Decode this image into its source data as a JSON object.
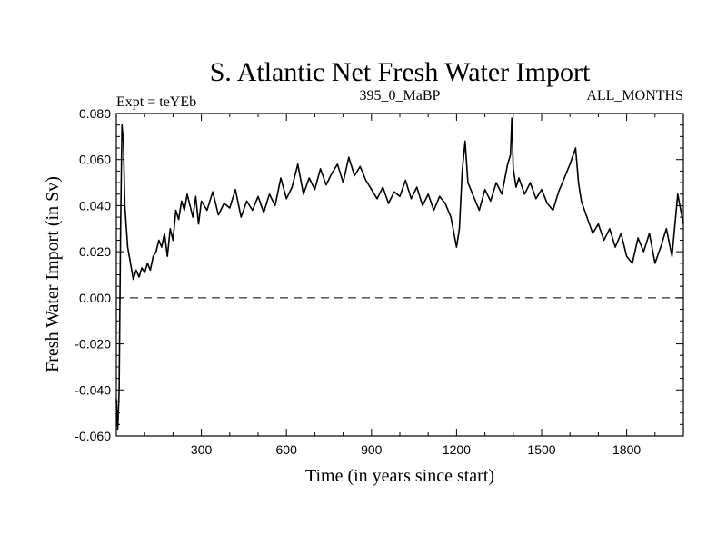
{
  "chart_data": {
    "type": "line",
    "title": "S. Atlantic Net Fresh Water Import",
    "subtitle_left": "Expt = teYEb",
    "subtitle_center": "395_0_MaBP",
    "subtitle_right": "ALL_MONTHS",
    "xlabel": "Time (in years since start)",
    "ylabel": "Fresh Water Import (in Sv)",
    "xlim": [
      0,
      2000
    ],
    "ylim": [
      -0.06,
      0.08
    ],
    "xticks": [
      300,
      600,
      900,
      1200,
      1500,
      1800
    ],
    "xtick_labels": [
      "300",
      "600",
      "900",
      "1200",
      "1500",
      "1800"
    ],
    "yticks": [
      -0.06,
      -0.04,
      -0.02,
      0.0,
      0.02,
      0.04,
      0.06,
      0.08
    ],
    "ytick_labels": [
      "-0.060",
      "-0.040",
      "-0.020",
      "0.000",
      "0.020",
      "0.040",
      "0.060",
      "0.080"
    ],
    "reference_line": {
      "y": 0.0,
      "style": "dashed"
    },
    "series": [
      {
        "name": "Net Fresh Water Import",
        "x": [
          0,
          5,
          10,
          15,
          20,
          25,
          30,
          40,
          50,
          60,
          70,
          80,
          90,
          100,
          110,
          120,
          130,
          140,
          150,
          160,
          170,
          180,
          190,
          200,
          210,
          220,
          230,
          240,
          250,
          260,
          270,
          280,
          290,
          300,
          320,
          340,
          360,
          380,
          400,
          420,
          440,
          460,
          480,
          500,
          520,
          540,
          560,
          580,
          600,
          620,
          640,
          660,
          680,
          700,
          720,
          740,
          760,
          780,
          800,
          820,
          840,
          860,
          880,
          900,
          920,
          940,
          960,
          980,
          1000,
          1020,
          1040,
          1060,
          1080,
          1100,
          1120,
          1140,
          1160,
          1180,
          1200,
          1210,
          1220,
          1230,
          1240,
          1260,
          1280,
          1300,
          1320,
          1340,
          1360,
          1380,
          1390,
          1395,
          1400,
          1410,
          1420,
          1440,
          1460,
          1480,
          1500,
          1520,
          1540,
          1560,
          1580,
          1600,
          1620,
          1630,
          1640,
          1660,
          1680,
          1700,
          1720,
          1740,
          1760,
          1780,
          1800,
          1820,
          1840,
          1860,
          1880,
          1900,
          1920,
          1940,
          1960,
          1980,
          2000
        ],
        "y": [
          -0.044,
          -0.057,
          -0.04,
          0.03,
          0.075,
          0.068,
          0.04,
          0.022,
          0.015,
          0.008,
          0.012,
          0.009,
          0.013,
          0.011,
          0.015,
          0.012,
          0.018,
          0.02,
          0.025,
          0.022,
          0.028,
          0.018,
          0.03,
          0.025,
          0.038,
          0.034,
          0.042,
          0.038,
          0.045,
          0.04,
          0.035,
          0.044,
          0.032,
          0.042,
          0.038,
          0.046,
          0.036,
          0.041,
          0.039,
          0.047,
          0.035,
          0.042,
          0.038,
          0.044,
          0.037,
          0.045,
          0.04,
          0.052,
          0.043,
          0.048,
          0.058,
          0.045,
          0.052,
          0.047,
          0.056,
          0.049,
          0.054,
          0.058,
          0.05,
          0.061,
          0.053,
          0.057,
          0.051,
          0.047,
          0.043,
          0.048,
          0.041,
          0.046,
          0.044,
          0.051,
          0.043,
          0.048,
          0.04,
          0.045,
          0.038,
          0.044,
          0.041,
          0.035,
          0.022,
          0.03,
          0.055,
          0.068,
          0.05,
          0.044,
          0.038,
          0.047,
          0.042,
          0.05,
          0.045,
          0.058,
          0.062,
          0.078,
          0.056,
          0.048,
          0.052,
          0.045,
          0.05,
          0.043,
          0.047,
          0.041,
          0.038,
          0.046,
          0.052,
          0.058,
          0.065,
          0.05,
          0.042,
          0.035,
          0.028,
          0.032,
          0.025,
          0.03,
          0.022,
          0.028,
          0.018,
          0.015,
          0.026,
          0.02,
          0.028,
          0.015,
          0.022,
          0.03,
          0.018,
          0.045,
          0.032
        ]
      }
    ]
  }
}
